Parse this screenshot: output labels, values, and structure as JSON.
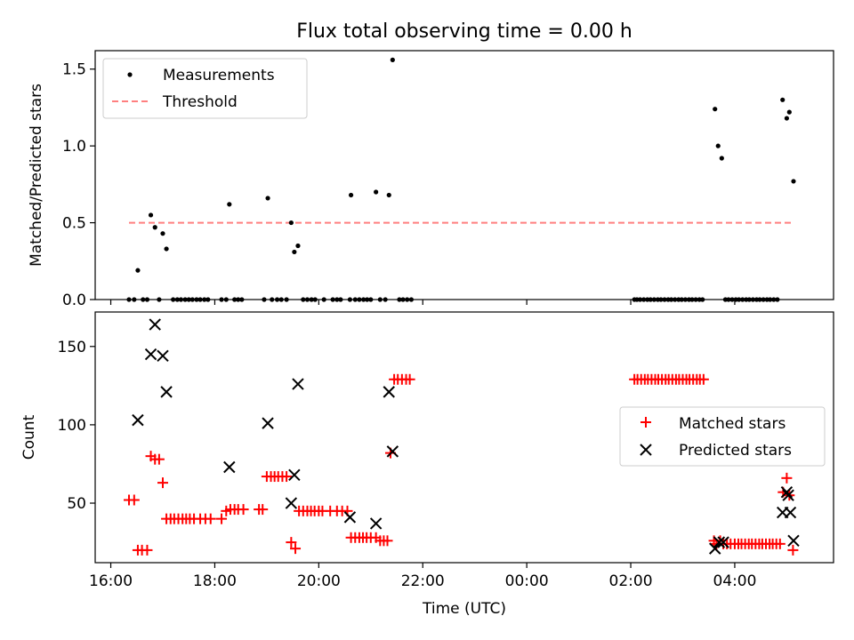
{
  "chart_data": [
    {
      "type": "scatter",
      "title": "Flux total observing time = 0.00 h",
      "xlabel": "",
      "ylabel": "Matched/Predicted stars",
      "ylim": [
        0,
        1.62
      ],
      "xlim_hours": [
        15.7,
        29.9
      ],
      "yticks": [
        0.0,
        0.5,
        1.0,
        1.5
      ],
      "ytick_labels": [
        "0.0",
        "0.5",
        "1.0",
        "1.5"
      ],
      "legend": {
        "position": "upper left",
        "entries": [
          {
            "label": "Measurements",
            "color": "#000000",
            "marker": "dot"
          },
          {
            "label": "Threshold",
            "color": "#ff7f7f",
            "marker": "dashed-line"
          }
        ]
      },
      "threshold": {
        "value": 0.5,
        "x_range": [
          16.35,
          29.12
        ],
        "color": "#ff7f7f"
      },
      "series": [
        {
          "name": "Measurements",
          "color": "#000000",
          "points": [
            [
              16.35,
              0
            ],
            [
              16.45,
              0
            ],
            [
              16.52,
              0.19
            ],
            [
              16.62,
              0
            ],
            [
              16.7,
              0
            ],
            [
              16.77,
              0.55
            ],
            [
              16.85,
              0.47
            ],
            [
              16.93,
              0
            ],
            [
              17.0,
              0.43
            ],
            [
              17.07,
              0.33
            ],
            [
              17.2,
              0
            ],
            [
              17.28,
              0
            ],
            [
              17.35,
              0
            ],
            [
              17.43,
              0
            ],
            [
              17.5,
              0
            ],
            [
              17.57,
              0
            ],
            [
              17.65,
              0
            ],
            [
              17.72,
              0
            ],
            [
              17.8,
              0
            ],
            [
              17.87,
              0
            ],
            [
              18.13,
              0
            ],
            [
              18.22,
              0
            ],
            [
              18.28,
              0.62
            ],
            [
              18.38,
              0
            ],
            [
              18.45,
              0
            ],
            [
              18.52,
              0
            ],
            [
              18.95,
              0
            ],
            [
              19.02,
              0.66
            ],
            [
              19.1,
              0
            ],
            [
              19.2,
              0
            ],
            [
              19.28,
              0
            ],
            [
              19.38,
              0
            ],
            [
              19.47,
              0.5
            ],
            [
              19.53,
              0.31
            ],
            [
              19.6,
              0.35
            ],
            [
              19.7,
              0
            ],
            [
              19.78,
              0
            ],
            [
              19.86,
              0
            ],
            [
              19.93,
              0
            ],
            [
              20.1,
              0
            ],
            [
              20.27,
              0
            ],
            [
              20.35,
              0
            ],
            [
              20.42,
              0
            ],
            [
              20.6,
              0
            ],
            [
              20.62,
              0.68
            ],
            [
              20.7,
              0
            ],
            [
              20.78,
              0
            ],
            [
              20.86,
              0
            ],
            [
              20.93,
              0
            ],
            [
              21.0,
              0
            ],
            [
              21.1,
              0.7
            ],
            [
              21.18,
              0
            ],
            [
              21.28,
              0
            ],
            [
              21.35,
              0.68
            ],
            [
              21.42,
              1.56
            ],
            [
              21.55,
              0
            ],
            [
              21.62,
              0
            ],
            [
              21.7,
              0
            ],
            [
              21.78,
              0
            ],
            [
              26.07,
              0
            ],
            [
              26.12,
              0
            ],
            [
              26.18,
              0
            ],
            [
              26.25,
              0
            ],
            [
              26.32,
              0
            ],
            [
              26.38,
              0
            ],
            [
              26.45,
              0
            ],
            [
              26.52,
              0
            ],
            [
              26.58,
              0
            ],
            [
              26.65,
              0
            ],
            [
              26.72,
              0
            ],
            [
              26.78,
              0
            ],
            [
              26.85,
              0
            ],
            [
              26.92,
              0
            ],
            [
              26.98,
              0
            ],
            [
              27.05,
              0
            ],
            [
              27.12,
              0
            ],
            [
              27.18,
              0
            ],
            [
              27.25,
              0
            ],
            [
              27.32,
              0
            ],
            [
              27.38,
              0
            ],
            [
              27.62,
              1.24
            ],
            [
              27.68,
              1.0
            ],
            [
              27.75,
              0.92
            ],
            [
              27.82,
              0
            ],
            [
              27.88,
              0
            ],
            [
              27.95,
              0
            ],
            [
              28.02,
              0
            ],
            [
              28.08,
              0
            ],
            [
              28.15,
              0
            ],
            [
              28.22,
              0
            ],
            [
              28.28,
              0
            ],
            [
              28.35,
              0
            ],
            [
              28.42,
              0
            ],
            [
              28.48,
              0
            ],
            [
              28.55,
              0
            ],
            [
              28.62,
              0
            ],
            [
              28.68,
              0
            ],
            [
              28.75,
              0
            ],
            [
              28.82,
              0
            ],
            [
              28.92,
              1.3
            ],
            [
              29.0,
              1.18
            ],
            [
              29.05,
              1.22
            ],
            [
              29.13,
              0.77
            ]
          ]
        }
      ]
    },
    {
      "type": "scatter",
      "title": "",
      "xlabel": "Time (UTC)",
      "ylabel": "Count",
      "ylim": [
        12,
        172
      ],
      "xlim_hours": [
        15.7,
        29.9
      ],
      "yticks": [
        50,
        100,
        150
      ],
      "ytick_labels": [
        "50",
        "100",
        "150"
      ],
      "xticks_hours": [
        16,
        18,
        20,
        22,
        24,
        26,
        28
      ],
      "xtick_labels": [
        "16:00",
        "18:00",
        "20:00",
        "22:00",
        "00:00",
        "02:00",
        "04:00"
      ],
      "legend": {
        "position": "center right",
        "entries": [
          {
            "label": "Matched stars",
            "color": "#ff0000",
            "marker": "+"
          },
          {
            "label": "Predicted stars",
            "color": "#000000",
            "marker": "x"
          }
        ]
      },
      "series": [
        {
          "name": "Matched stars",
          "color": "#ff0000",
          "marker": "+",
          "points": [
            [
              16.35,
              52
            ],
            [
              16.45,
              52
            ],
            [
              16.52,
              20
            ],
            [
              16.6,
              20
            ],
            [
              16.7,
              20
            ],
            [
              16.77,
              80
            ],
            [
              16.85,
              78
            ],
            [
              16.93,
              78
            ],
            [
              17.0,
              63
            ],
            [
              17.07,
              40
            ],
            [
              17.15,
              40
            ],
            [
              17.22,
              40
            ],
            [
              17.3,
              40
            ],
            [
              17.38,
              40
            ],
            [
              17.45,
              40
            ],
            [
              17.52,
              40
            ],
            [
              17.6,
              40
            ],
            [
              17.72,
              40
            ],
            [
              17.82,
              40
            ],
            [
              17.92,
              40
            ],
            [
              18.13,
              40
            ],
            [
              18.22,
              45
            ],
            [
              18.3,
              46
            ],
            [
              18.38,
              46
            ],
            [
              18.45,
              46
            ],
            [
              18.55,
              46
            ],
            [
              18.85,
              46
            ],
            [
              18.92,
              46
            ],
            [
              19.0,
              67
            ],
            [
              19.08,
              67
            ],
            [
              19.15,
              67
            ],
            [
              19.22,
              67
            ],
            [
              19.3,
              67
            ],
            [
              19.38,
              67
            ],
            [
              19.47,
              25
            ],
            [
              19.55,
              21
            ],
            [
              19.62,
              45
            ],
            [
              19.7,
              45
            ],
            [
              19.78,
              45
            ],
            [
              19.85,
              45
            ],
            [
              19.92,
              45
            ],
            [
              20.0,
              45
            ],
            [
              20.07,
              45
            ],
            [
              20.22,
              45
            ],
            [
              20.35,
              45
            ],
            [
              20.45,
              45
            ],
            [
              20.55,
              45
            ],
            [
              20.62,
              28
            ],
            [
              20.7,
              28
            ],
            [
              20.78,
              28
            ],
            [
              20.85,
              28
            ],
            [
              20.92,
              28
            ],
            [
              21.0,
              28
            ],
            [
              21.1,
              28
            ],
            [
              21.18,
              26
            ],
            [
              21.25,
              26
            ],
            [
              21.32,
              26
            ],
            [
              21.38,
              82
            ],
            [
              21.45,
              129
            ],
            [
              21.52,
              129
            ],
            [
              21.6,
              129
            ],
            [
              21.68,
              129
            ],
            [
              21.75,
              129
            ],
            [
              26.07,
              129
            ],
            [
              26.13,
              129
            ],
            [
              26.2,
              129
            ],
            [
              26.27,
              129
            ],
            [
              26.33,
              129
            ],
            [
              26.4,
              129
            ],
            [
              26.47,
              129
            ],
            [
              26.53,
              129
            ],
            [
              26.6,
              129
            ],
            [
              26.67,
              129
            ],
            [
              26.73,
              129
            ],
            [
              26.8,
              129
            ],
            [
              26.87,
              129
            ],
            [
              26.93,
              129
            ],
            [
              27.0,
              129
            ],
            [
              27.07,
              129
            ],
            [
              27.13,
              129
            ],
            [
              27.2,
              129
            ],
            [
              27.27,
              129
            ],
            [
              27.33,
              129
            ],
            [
              27.4,
              129
            ],
            [
              27.6,
              26
            ],
            [
              27.65,
              24
            ],
            [
              27.72,
              26
            ],
            [
              27.78,
              24
            ],
            [
              27.85,
              24
            ],
            [
              27.92,
              24
            ],
            [
              28.0,
              24
            ],
            [
              28.07,
              24
            ],
            [
              28.13,
              24
            ],
            [
              28.2,
              24
            ],
            [
              28.27,
              24
            ],
            [
              28.33,
              24
            ],
            [
              28.4,
              24
            ],
            [
              28.47,
              24
            ],
            [
              28.53,
              24
            ],
            [
              28.6,
              24
            ],
            [
              28.67,
              24
            ],
            [
              28.73,
              24
            ],
            [
              28.8,
              24
            ],
            [
              28.87,
              24
            ],
            [
              28.93,
              57
            ],
            [
              29.0,
              66
            ],
            [
              29.05,
              55
            ],
            [
              29.12,
              20
            ]
          ]
        },
        {
          "name": "Predicted stars",
          "color": "#000000",
          "marker": "x",
          "points": [
            [
              16.52,
              103
            ],
            [
              16.77,
              145
            ],
            [
              16.85,
              164
            ],
            [
              17.0,
              144
            ],
            [
              17.07,
              121
            ],
            [
              18.28,
              73
            ],
            [
              19.02,
              101
            ],
            [
              19.47,
              50
            ],
            [
              19.53,
              68
            ],
            [
              19.6,
              126
            ],
            [
              20.6,
              41
            ],
            [
              21.1,
              37
            ],
            [
              21.35,
              121
            ],
            [
              21.42,
              83
            ],
            [
              27.62,
              21
            ],
            [
              27.7,
              25
            ],
            [
              27.78,
              25
            ],
            [
              28.92,
              44
            ],
            [
              29.0,
              57
            ],
            [
              29.03,
              55
            ],
            [
              29.07,
              44
            ],
            [
              29.13,
              26
            ]
          ]
        }
      ]
    }
  ]
}
